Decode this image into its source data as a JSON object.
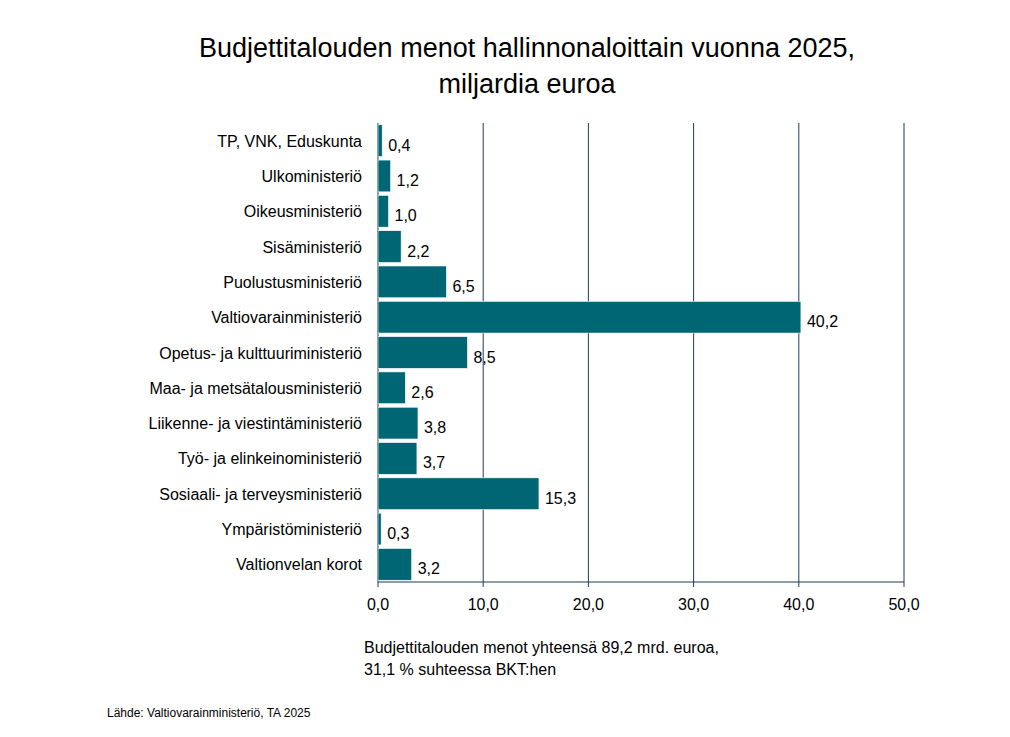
{
  "chart_data": {
    "type": "bar",
    "orientation": "horizontal",
    "title": "Budjettitalouden menot hallinnonaloittain vuonna 2025,",
    "subtitle": "miljardia euroa",
    "categories": [
      "TP, VNK, Eduskunta",
      "Ulkoministeriö",
      "Oikeusministeriö",
      "Sisäministeriö",
      "Puolustusministeriö",
      "Valtiovarainministeriö",
      "Opetus- ja kulttuuriministeriö",
      "Maa- ja metsätalousministeriö",
      "Liikenne- ja viestintäministeriö",
      "Työ- ja elinkeinoministeriö",
      "Sosiaali- ja terveysministeriö",
      "Ympäristöministeriö",
      "Valtionvelan korot"
    ],
    "values": [
      0.4,
      1.2,
      1.0,
      2.2,
      6.5,
      40.2,
      8.5,
      2.6,
      3.8,
      3.7,
      15.3,
      0.3,
      3.2
    ],
    "value_labels": [
      "0,4",
      "1,2",
      "1,0",
      "2,2",
      "6,5",
      "40,2",
      "8,5",
      "2,6",
      "3,8",
      "3,7",
      "15,3",
      "0,3",
      "3,2"
    ],
    "color": "#006673",
    "xlim": [
      0,
      50
    ],
    "xticks": [
      {
        "value": 0,
        "label": "0,0"
      },
      {
        "value": 10,
        "label": "10,0"
      },
      {
        "value": 20,
        "label": "20,0"
      },
      {
        "value": 30,
        "label": "30,0"
      },
      {
        "value": 40,
        "label": "40,0"
      },
      {
        "value": 50,
        "label": "50,0"
      }
    ],
    "grid": true,
    "data_labels": true,
    "annotations": [
      "Budjettitalouden menot yhteensä 89,2 mrd. euroa,",
      "31,1 % suhteessa BKT:hen"
    ],
    "source": "Lähde: Valtiovarainministeriö, TA 2025"
  }
}
